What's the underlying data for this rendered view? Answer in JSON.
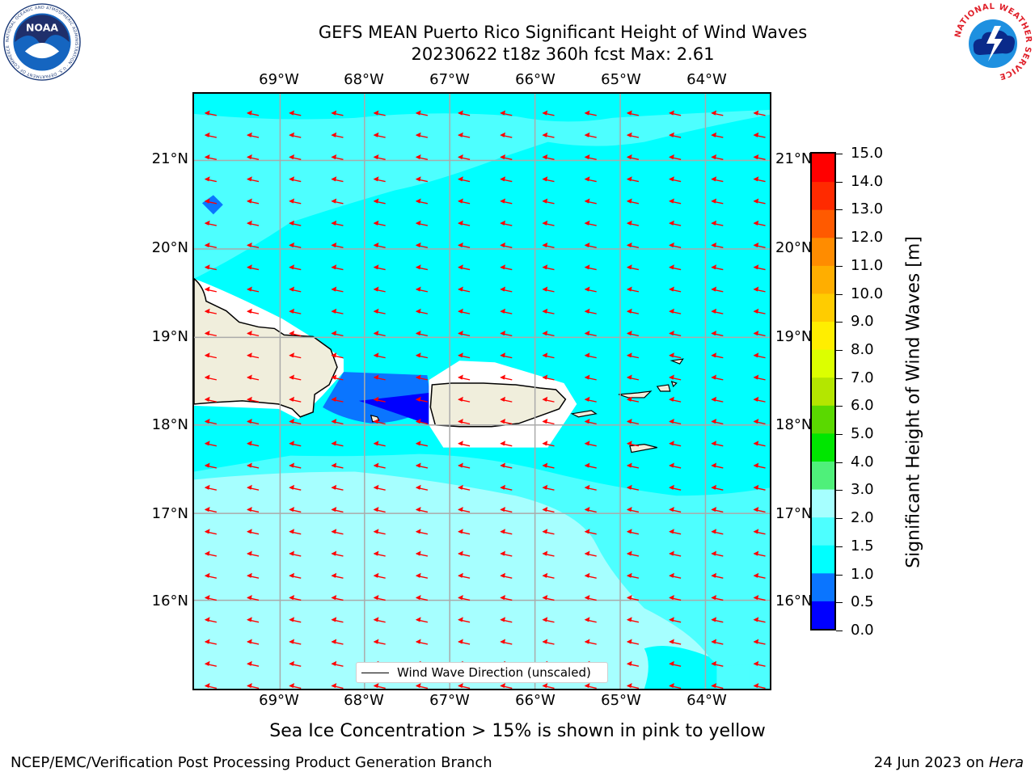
{
  "title_line1": "GEFS MEAN Puerto Rico Significant Height of Wind Waves",
  "title_line2": "20230622 t18z 360h fcst   Max: 2.61",
  "lon_labels": [
    "69°W",
    "68°W",
    "67°W",
    "66°W",
    "65°W",
    "64°W"
  ],
  "lat_labels": [
    "21°N",
    "20°N",
    "19°N",
    "18°N",
    "17°N",
    "16°N"
  ],
  "colorbar": {
    "title": "Significant Height of Wind Waves [m]",
    "ticks": [
      "15.0",
      "14.0",
      "13.0",
      "12.0",
      "11.0",
      "10.0",
      "9.0",
      "8.0",
      "7.0",
      "6.0",
      "5.0",
      "4.0",
      "3.0",
      "2.0",
      "1.5",
      "1.0",
      "0.5",
      "0.0"
    ],
    "colors": [
      "#0000ff",
      "#0a75ff",
      "#00ffff",
      "#4dffff",
      "#a6ffff",
      "#4ff07a",
      "#00e600",
      "#5ad900",
      "#b4e600",
      "#dcff00",
      "#ffee00",
      "#ffcc00",
      "#ffae00",
      "#ff8c00",
      "#ff5a00",
      "#ff2a00",
      "#ff0000"
    ]
  },
  "legend_label": "Wind Wave Direction (unscaled)",
  "subtitle": "Sea Ice Concentration > 15% is shown in pink to yellow",
  "footer_left": "NCEP/EMC/Verification Post Processing Product Generation Branch",
  "footer_right_date": "24 Jun 2023 on ",
  "footer_right_host": "Hera",
  "colors": {
    "land": "#f0eedc",
    "arrow": "#ff0000",
    "grid": "#aaaaaa"
  },
  "logos": {
    "noaa_text": "NOAA",
    "noaa_ring": "NATIONAL OCEANIC AND ATMOSPHERIC ADMINISTRATION · U.S. DEPARTMENT OF COMMERCE",
    "nws_ring": "NATIONAL WEATHER SERVICE"
  }
}
